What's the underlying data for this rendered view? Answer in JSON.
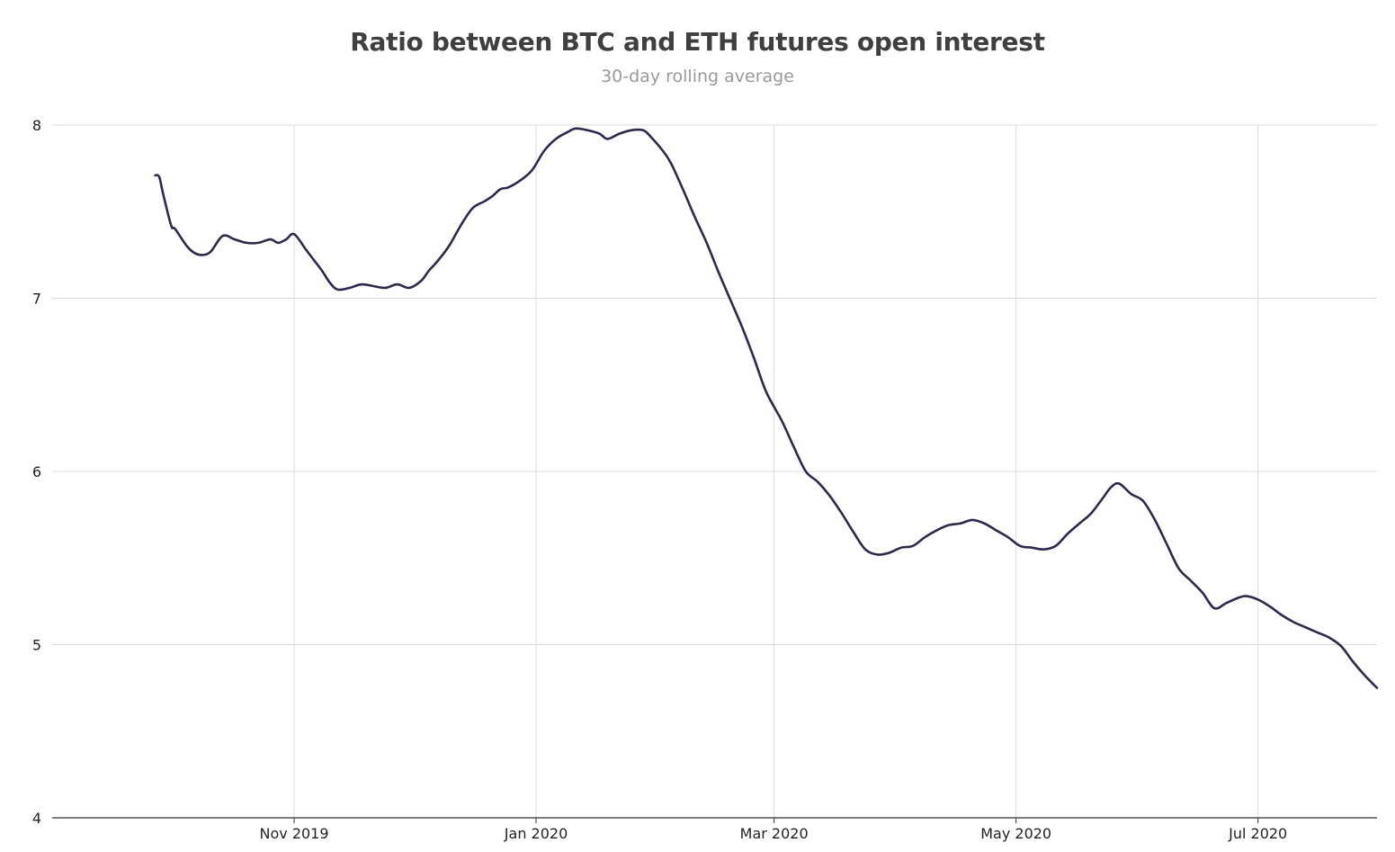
{
  "chart_data": {
    "type": "line",
    "title": "Ratio between BTC and ETH futures open interest",
    "subtitle": "30-day rolling average",
    "xlabel": "",
    "ylabel": "",
    "ylim": [
      4,
      8
    ],
    "xlim": [
      "2019-09-01",
      "2020-07-31"
    ],
    "y_ticks": [
      "4",
      "5",
      "6",
      "7",
      "8"
    ],
    "x_ticks": [
      {
        "date": "2019-11-01",
        "label": "Nov 2019"
      },
      {
        "date": "2020-01-01",
        "label": "Jan 2020"
      },
      {
        "date": "2020-03-01",
        "label": "Mar 2020"
      },
      {
        "date": "2020-05-01",
        "label": "May 2020"
      },
      {
        "date": "2020-07-01",
        "label": "Jul 2020"
      }
    ],
    "grid": true,
    "legend": "none",
    "line_color": "#2b2a4c",
    "series": [
      {
        "x": [
          "2019-09-27",
          "2019-09-28",
          "2019-09-29",
          "2019-10-01",
          "2019-10-02",
          "2019-10-05",
          "2019-10-07",
          "2019-10-09",
          "2019-10-11",
          "2019-10-14",
          "2019-10-17",
          "2019-10-20",
          "2019-10-23",
          "2019-10-26",
          "2019-10-28",
          "2019-10-30",
          "2019-11-01",
          "2019-11-04",
          "2019-11-06",
          "2019-11-08",
          "2019-11-10",
          "2019-11-12",
          "2019-11-15",
          "2019-11-18",
          "2019-11-21",
          "2019-11-24",
          "2019-11-27",
          "2019-11-30",
          "2019-12-03",
          "2019-12-05",
          "2019-12-07",
          "2019-12-10",
          "2019-12-13",
          "2019-12-16",
          "2019-12-19",
          "2019-12-21",
          "2019-12-23",
          "2019-12-25",
          "2019-12-28",
          "2019-12-31",
          "2020-01-03",
          "2020-01-06",
          "2020-01-09",
          "2020-01-11",
          "2020-01-14",
          "2020-01-17",
          "2020-01-19",
          "2020-01-22",
          "2020-01-25",
          "2020-01-28",
          "2020-01-30",
          "2020-02-02",
          "2020-02-04",
          "2020-02-07",
          "2020-02-10",
          "2020-02-13",
          "2020-02-16",
          "2020-02-19",
          "2020-02-22",
          "2020-02-25",
          "2020-02-28",
          "2020-03-03",
          "2020-03-06",
          "2020-03-09",
          "2020-03-12",
          "2020-03-15",
          "2020-03-18",
          "2020-03-21",
          "2020-03-24",
          "2020-03-27",
          "2020-03-30",
          "2020-04-02",
          "2020-04-05",
          "2020-04-08",
          "2020-04-11",
          "2020-04-14",
          "2020-04-17",
          "2020-04-20",
          "2020-04-23",
          "2020-04-26",
          "2020-04-29",
          "2020-05-02",
          "2020-05-05",
          "2020-05-08",
          "2020-05-11",
          "2020-05-14",
          "2020-05-17",
          "2020-05-20",
          "2020-05-23",
          "2020-05-25",
          "2020-05-27",
          "2020-05-30",
          "2020-06-02",
          "2020-06-05",
          "2020-06-08",
          "2020-06-11",
          "2020-06-14",
          "2020-06-17",
          "2020-06-20",
          "2020-06-23",
          "2020-06-26",
          "2020-06-28",
          "2020-07-01",
          "2020-07-04",
          "2020-07-07",
          "2020-07-10",
          "2020-07-13",
          "2020-07-16",
          "2020-07-19",
          "2020-07-22",
          "2020-07-25",
          "2020-07-28",
          "2020-07-31"
        ],
        "y": [
          7.71,
          7.7,
          7.6,
          7.42,
          7.4,
          7.3,
          7.26,
          7.25,
          7.27,
          7.36,
          7.34,
          7.32,
          7.32,
          7.34,
          7.32,
          7.34,
          7.37,
          7.28,
          7.22,
          7.16,
          7.09,
          7.05,
          7.06,
          7.08,
          7.07,
          7.06,
          7.08,
          7.06,
          7.1,
          7.16,
          7.21,
          7.3,
          7.42,
          7.52,
          7.56,
          7.59,
          7.63,
          7.64,
          7.68,
          7.74,
          7.85,
          7.92,
          7.96,
          7.98,
          7.97,
          7.95,
          7.92,
          7.95,
          7.97,
          7.97,
          7.93,
          7.85,
          7.78,
          7.63,
          7.47,
          7.32,
          7.15,
          6.99,
          6.83,
          6.65,
          6.46,
          6.29,
          6.14,
          6.0,
          5.94,
          5.86,
          5.76,
          5.65,
          5.55,
          5.52,
          5.53,
          5.56,
          5.57,
          5.62,
          5.66,
          5.69,
          5.7,
          5.72,
          5.7,
          5.66,
          5.62,
          5.57,
          5.56,
          5.55,
          5.57,
          5.64,
          5.7,
          5.76,
          5.85,
          5.91,
          5.93,
          5.87,
          5.83,
          5.72,
          5.58,
          5.44,
          5.37,
          5.3,
          5.21,
          5.24,
          5.27,
          5.28,
          5.26,
          5.22,
          5.17,
          5.13,
          5.1,
          5.07,
          5.04,
          4.99,
          4.9,
          4.82,
          4.75
        ]
      }
    ]
  }
}
